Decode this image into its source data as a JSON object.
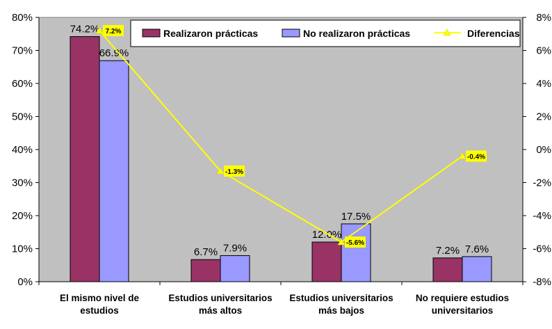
{
  "chart_data": {
    "type": "bar",
    "categories": [
      [
        "El mismo nivel de",
        "estudios"
      ],
      [
        "Estudios universitarios",
        "más   altos"
      ],
      [
        "Estudios universitarios",
        "más   bajos"
      ],
      [
        "No requiere estudios",
        "universitarios"
      ]
    ],
    "series": [
      {
        "name": "Realizaron prácticas",
        "values": [
          74.2,
          6.7,
          12.0,
          7.2
        ],
        "labels": [
          "74.2%",
          "6.7%",
          "12.0%",
          "7.2%"
        ],
        "color": "#993366"
      },
      {
        "name": "No realizaron prácticas",
        "values": [
          66.9,
          7.9,
          17.5,
          7.6
        ],
        "labels": [
          "66.9%",
          "7.9%",
          "17.5%",
          "7.6%"
        ],
        "color": "#9999ff"
      }
    ],
    "line_series": {
      "name": "Diferencias",
      "values": [
        7.2,
        -1.3,
        -5.6,
        -0.4
      ],
      "labels": [
        "7.2%",
        "-1.3%",
        "-5.6%",
        "-0.4%"
      ],
      "color": "#ffff00",
      "axis": "right"
    },
    "y_left": {
      "ylim": [
        0,
        80
      ],
      "ticks": [
        "0%",
        "10%",
        "20%",
        "30%",
        "40%",
        "50%",
        "60%",
        "70%",
        "80%"
      ]
    },
    "y_right": {
      "ylim": [
        -8,
        8
      ],
      "ticks": [
        "-8%",
        "-6%",
        "-4%",
        "-2%",
        "0%",
        "2%",
        "4%",
        "6%",
        "8%"
      ]
    },
    "plot_background": "#c0c0c0",
    "grid": false,
    "legend_position": "top-right"
  }
}
